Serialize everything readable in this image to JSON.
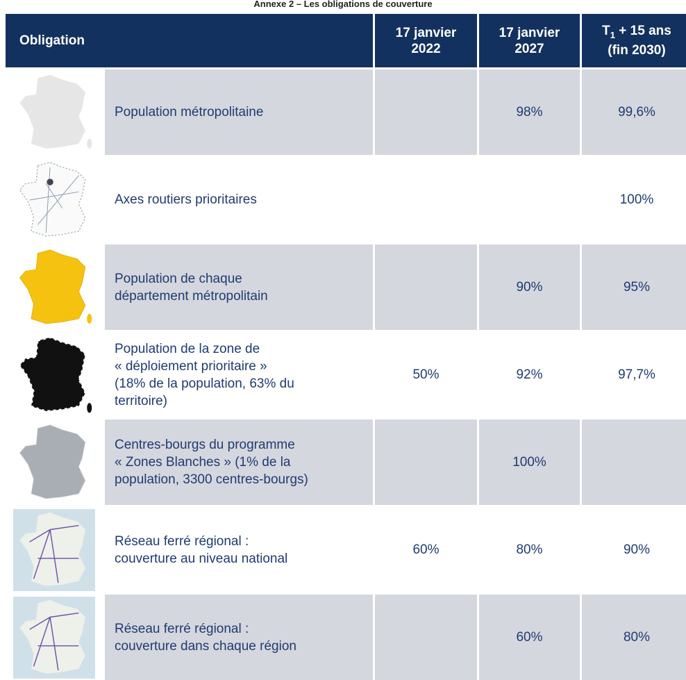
{
  "title": "Annexe 2 – Les obligations de couverture",
  "table": {
    "header": {
      "obligation": "Obligation",
      "col1": [
        "17 janvier",
        "2022"
      ],
      "col2": [
        "17 janvier",
        "2027"
      ],
      "col3": {
        "t": "T",
        "sub": "1",
        "rest": " + 15 ans",
        "line2": "(fin 2030)"
      }
    },
    "rows": [
      {
        "obligation": [
          "Population métropolitaine"
        ],
        "values": [
          null,
          "98%",
          "99,6%"
        ]
      },
      {
        "obligation": [
          "Axes routiers prioritaires"
        ],
        "values": [
          null,
          null,
          "100%"
        ]
      },
      {
        "obligation": [
          "Population de chaque",
          "département métropolitain"
        ],
        "values": [
          null,
          "90%",
          "95%"
        ]
      },
      {
        "obligation": [
          "Population de la zone de",
          "« déploiement prioritaire »",
          "(18% de la population, 63% du",
          "territoire)"
        ],
        "values": [
          "50%",
          "92%",
          "97,7%"
        ]
      },
      {
        "obligation": [
          "Centres-bourgs du programme",
          "« Zones Blanches » (1% de la",
          "population, 3300 centres-bourgs)"
        ],
        "values": [
          null,
          "100%",
          null
        ]
      },
      {
        "obligation": [
          "Réseau ferré régional :",
          "couverture au niveau national"
        ],
        "values": [
          "60%",
          "80%",
          "90%"
        ]
      },
      {
        "obligation": [
          "Réseau ferré régional :",
          "couverture dans chaque région"
        ],
        "values": [
          null,
          "60%",
          "80%"
        ]
      }
    ]
  }
}
